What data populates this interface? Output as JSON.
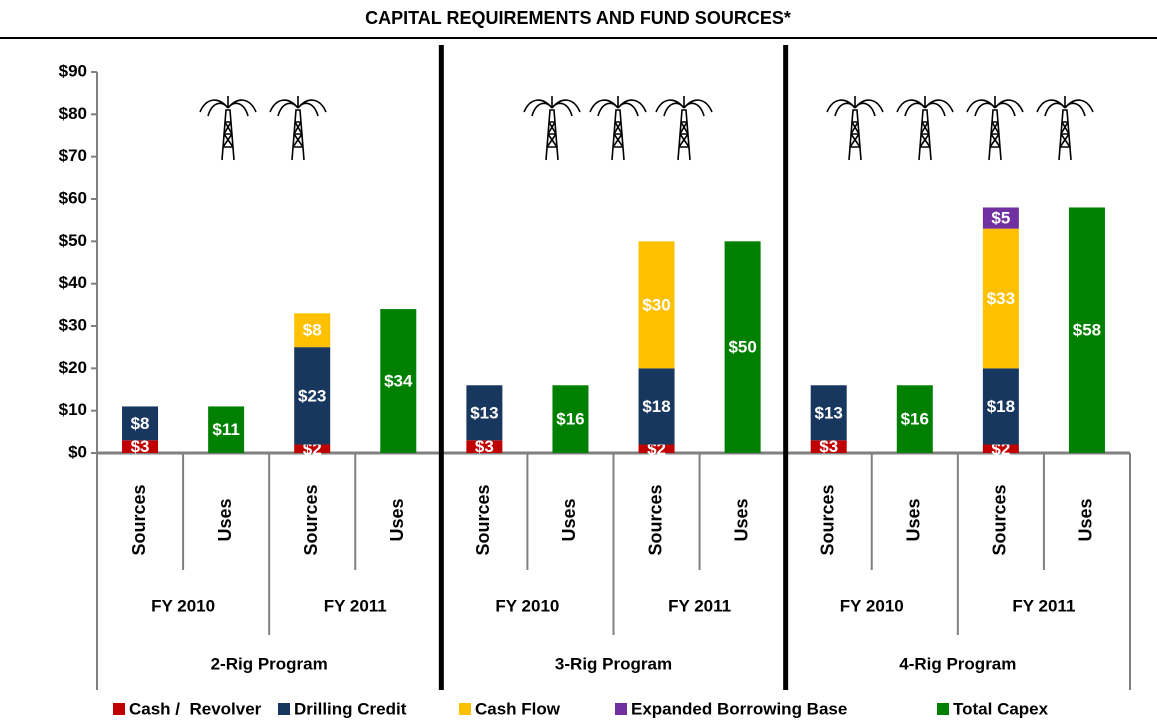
{
  "chart_data": {
    "type": "bar",
    "stacked": true,
    "title": "CAPITAL REQUIREMENTS AND FUND SOURCES*",
    "categories": [
      "Sources",
      "Uses",
      "Sources",
      "Uses",
      "Sources",
      "Uses",
      "Sources",
      "Uses",
      "Sources",
      "Uses",
      "Sources",
      "Uses"
    ],
    "year_groups": [
      "FY 2010",
      "FY 2011",
      "FY 2010",
      "FY 2011",
      "FY 2010",
      "FY 2011"
    ],
    "program_groups": [
      "2-Rig Program",
      "3-Rig Program",
      "4-Rig Program"
    ],
    "series": [
      {
        "name": "Cash /  Revolver",
        "color": "#c00000",
        "values": [
          3,
          null,
          2,
          null,
          3,
          null,
          2,
          null,
          3,
          null,
          2,
          null
        ],
        "value_labels": [
          "$3",
          null,
          "$2",
          null,
          "$3",
          null,
          "$2",
          null,
          "$3",
          null,
          "$2",
          null
        ]
      },
      {
        "name": "Drilling Credit",
        "color": "#17375e",
        "values": [
          8,
          null,
          23,
          null,
          13,
          null,
          18,
          null,
          13,
          null,
          18,
          null
        ],
        "value_labels": [
          "$8",
          null,
          "$23",
          null,
          "$13",
          null,
          "$18",
          null,
          "$13",
          null,
          "$18",
          null
        ]
      },
      {
        "name": "Cash Flow",
        "color": "#ffc000",
        "values": [
          null,
          null,
          8,
          null,
          null,
          null,
          30,
          null,
          null,
          null,
          33,
          null
        ],
        "value_labels": [
          null,
          null,
          "$8",
          null,
          null,
          null,
          "$30",
          null,
          null,
          null,
          "$33",
          null
        ]
      },
      {
        "name": "Expanded Borrowing Base",
        "color": "#7030a0",
        "values": [
          null,
          null,
          null,
          null,
          null,
          null,
          null,
          null,
          null,
          null,
          5,
          null
        ],
        "value_labels": [
          null,
          null,
          null,
          null,
          null,
          null,
          null,
          null,
          null,
          null,
          "$5",
          null
        ]
      },
      {
        "name": "Total Capex",
        "color": "#008000",
        "values": [
          null,
          11,
          null,
          34,
          null,
          16,
          null,
          50,
          null,
          16,
          null,
          58
        ],
        "value_labels": [
          null,
          "$11",
          null,
          "$34",
          null,
          "$16",
          null,
          "$50",
          null,
          "$16",
          null,
          "$58"
        ]
      }
    ],
    "ylim": [
      0,
      90
    ],
    "yticks": [
      {
        "value": 0,
        "label": "$0"
      },
      {
        "value": 10,
        "label": "$10"
      },
      {
        "value": 20,
        "label": "$20"
      },
      {
        "value": 30,
        "label": "$30"
      },
      {
        "value": 40,
        "label": "$40"
      },
      {
        "value": 50,
        "label": "$50"
      },
      {
        "value": 60,
        "label": "$60"
      },
      {
        "value": 70,
        "label": "$70"
      },
      {
        "value": 80,
        "label": "$80"
      },
      {
        "value": 90,
        "label": "$90"
      }
    ],
    "legend": "bottom"
  }
}
